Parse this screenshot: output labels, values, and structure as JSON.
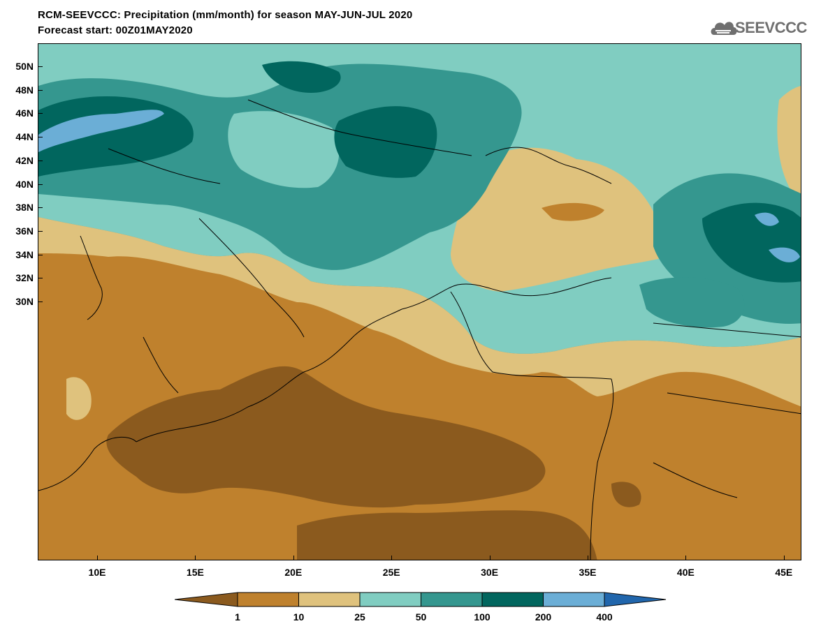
{
  "header": {
    "title": "RCM-SEEVCCC: Precipitation (mm/month) for season MAY-JUN-JUL 2020",
    "subtitle": "Forecast start: 00Z01MAY2020",
    "logo_text": "SEEVCCC"
  },
  "map": {
    "lat_labels": [
      "50N",
      "48N",
      "46N",
      "44N",
      "42N",
      "40N",
      "38N",
      "36N",
      "34N",
      "32N",
      "30N"
    ],
    "lon_labels": [
      "10E",
      "15E",
      "20E",
      "25E",
      "30E",
      "35E",
      "40E",
      "45E"
    ],
    "colors": {
      "lt1": "#8b5a1e",
      "1-10": "#bf812d",
      "10-25": "#dfc27d",
      "25-50": "#80cdc1",
      "50-100": "#35978f",
      "100-200": "#01665e",
      "200-400": "#6baed6",
      "gt400": "#2166ac"
    }
  },
  "colorbar": {
    "labels": [
      "1",
      "10",
      "25",
      "50",
      "100",
      "200",
      "400"
    ],
    "colors": [
      "#8b5a1e",
      "#bf812d",
      "#dfc27d",
      "#80cdc1",
      "#35978f",
      "#01665e",
      "#6baed6",
      "#2166ac"
    ]
  }
}
